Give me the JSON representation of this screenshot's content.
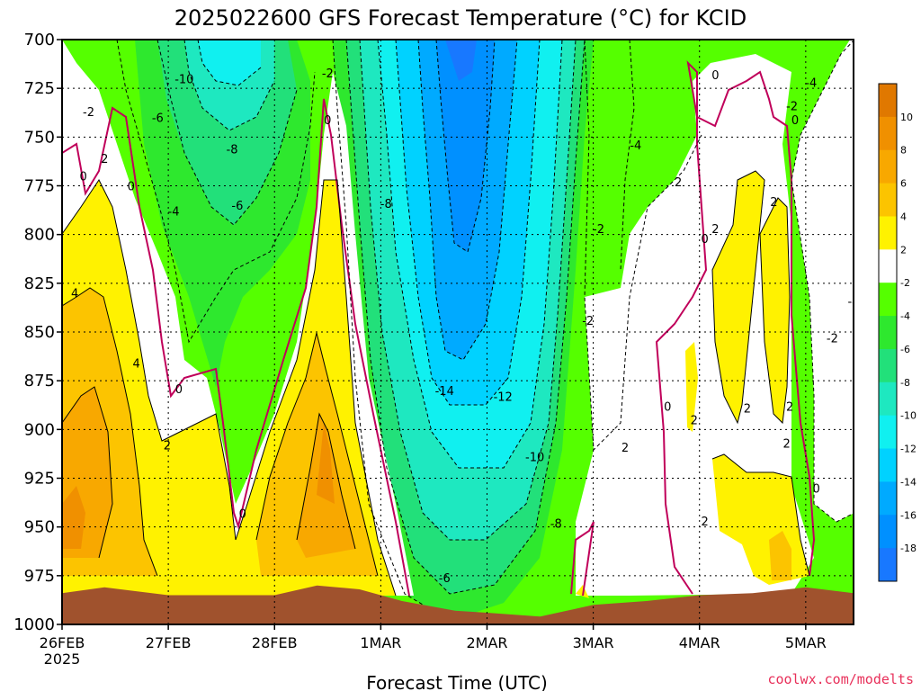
{
  "chart_data": {
    "type": "heatmap",
    "title": "2025022600 GFS Forecast Temperature (°C) for KCID",
    "xlabel": "Forecast Time (UTC)",
    "ylabel": "",
    "credit": "coolwx.com/modelts",
    "x_ticks": [
      "26FEB",
      "27FEB",
      "28FEB",
      "1MAR",
      "2MAR",
      "3MAR",
      "4MAR",
      "5MAR"
    ],
    "x_year": "2025",
    "y_ticks": [
      700,
      725,
      750,
      775,
      800,
      825,
      850,
      875,
      900,
      925,
      950,
      975,
      1000
    ],
    "y_range": [
      1000,
      700
    ],
    "x_range_days": [
      0,
      7.45
    ],
    "grid": true,
    "colorbar_ticks": [
      10,
      8,
      6,
      4,
      2,
      -2,
      -4,
      -6,
      -8,
      -10,
      -12,
      -14,
      -16,
      -18
    ],
    "colorbar_bins": [
      {
        "min": 10,
        "max": 12,
        "color": "#e07800"
      },
      {
        "min": 8,
        "max": 10,
        "color": "#f09000"
      },
      {
        "min": 6,
        "max": 8,
        "color": "#f8a800"
      },
      {
        "min": 4,
        "max": 6,
        "color": "#fcc400"
      },
      {
        "min": 2,
        "max": 4,
        "color": "#fff200"
      },
      {
        "min": -2,
        "max": 2,
        "color": "#ffffff"
      },
      {
        "min": -4,
        "max": -2,
        "color": "#55ff00"
      },
      {
        "min": -6,
        "max": -4,
        "color": "#2ee82e"
      },
      {
        "min": -8,
        "max": -6,
        "color": "#22e07a"
      },
      {
        "min": -10,
        "max": -8,
        "color": "#1ee8c0"
      },
      {
        "min": -12,
        "max": -10,
        "color": "#10f0f0"
      },
      {
        "min": -14,
        "max": -12,
        "color": "#00d2ff"
      },
      {
        "min": -16,
        "max": -14,
        "color": "#00aaff"
      },
      {
        "min": -18,
        "max": -16,
        "color": "#0090ff"
      },
      {
        "min": -20,
        "max": -18,
        "color": "#1878ff"
      }
    ],
    "terrain_color": "#a0522d",
    "freezing_line_color": "#c0005a",
    "surface_pressure": [
      {
        "t": 0.0,
        "p": 984
      },
      {
        "t": 0.4,
        "p": 981
      },
      {
        "t": 1.0,
        "p": 985
      },
      {
        "t": 2.0,
        "p": 985
      },
      {
        "t": 2.4,
        "p": 980
      },
      {
        "t": 2.8,
        "p": 982
      },
      {
        "t": 3.2,
        "p": 988
      },
      {
        "t": 3.7,
        "p": 993
      },
      {
        "t": 4.0,
        "p": 994
      },
      {
        "t": 4.5,
        "p": 996
      },
      {
        "t": 5.0,
        "p": 990
      },
      {
        "t": 5.5,
        "p": 988
      },
      {
        "t": 6.0,
        "p": 985
      },
      {
        "t": 6.5,
        "p": 984
      },
      {
        "t": 7.0,
        "p": 981
      },
      {
        "t": 7.45,
        "p": 984
      }
    ],
    "contour_labels": [
      {
        "t": 1.15,
        "p": 720,
        "v": -10
      },
      {
        "t": 0.25,
        "p": 737,
        "v": -2
      },
      {
        "t": 0.9,
        "p": 740,
        "v": -6
      },
      {
        "t": 1.6,
        "p": 756,
        "v": -8
      },
      {
        "t": 1.65,
        "p": 785,
        "v": -6
      },
      {
        "t": 1.05,
        "p": 788,
        "v": -4
      },
      {
        "t": 0.4,
        "p": 761,
        "v": 2
      },
      {
        "t": 0.2,
        "p": 770,
        "v": 0
      },
      {
        "t": 0.65,
        "p": 775,
        "v": 0
      },
      {
        "t": 2.5,
        "p": 717,
        "v": -2
      },
      {
        "t": 2.5,
        "p": 741,
        "v": 0
      },
      {
        "t": 3.05,
        "p": 784,
        "v": -8
      },
      {
        "t": 0.12,
        "p": 830,
        "v": 4
      },
      {
        "t": 0.7,
        "p": 866,
        "v": 4
      },
      {
        "t": 1.1,
        "p": 879,
        "v": 0
      },
      {
        "t": 0.99,
        "p": 908,
        "v": 2
      },
      {
        "t": 1.7,
        "p": 943,
        "v": 0
      },
      {
        "t": 3.6,
        "p": 880,
        "v": -14
      },
      {
        "t": 4.15,
        "p": 883,
        "v": -12
      },
      {
        "t": 4.45,
        "p": 914,
        "v": -10
      },
      {
        "t": 4.65,
        "p": 948,
        "v": -8
      },
      {
        "t": 3.6,
        "p": 976,
        "v": -6
      },
      {
        "t": 5.4,
        "p": 754,
        "v": -4
      },
      {
        "t": 5.05,
        "p": 797,
        "v": -2
      },
      {
        "t": 5.8,
        "p": 773,
        "v": 2
      },
      {
        "t": 4.95,
        "p": 844,
        "v": -2
      },
      {
        "t": 5.3,
        "p": 909,
        "v": 2
      },
      {
        "t": 6.15,
        "p": 718,
        "v": 0
      },
      {
        "t": 6.05,
        "p": 802,
        "v": 0
      },
      {
        "t": 6.15,
        "p": 797,
        "v": 2
      },
      {
        "t": 6.7,
        "p": 783,
        "v": 2
      },
      {
        "t": 5.7,
        "p": 888,
        "v": 0
      },
      {
        "t": 5.95,
        "p": 895,
        "v": 2
      },
      {
        "t": 6.45,
        "p": 889,
        "v": 2
      },
      {
        "t": 6.85,
        "p": 888,
        "v": 2
      },
      {
        "t": 6.9,
        "p": 741,
        "v": 0
      },
      {
        "t": 6.87,
        "p": 734,
        "v": -2
      },
      {
        "t": 7.05,
        "p": 722,
        "v": -4
      },
      {
        "t": 7.45,
        "p": 834,
        "v": -4
      },
      {
        "t": 7.25,
        "p": 853,
        "v": -2
      },
      {
        "t": 6.82,
        "p": 907,
        "v": 2
      },
      {
        "t": 7.1,
        "p": 930,
        "v": 0
      },
      {
        "t": 6.05,
        "p": 947,
        "v": 2
      }
    ]
  }
}
